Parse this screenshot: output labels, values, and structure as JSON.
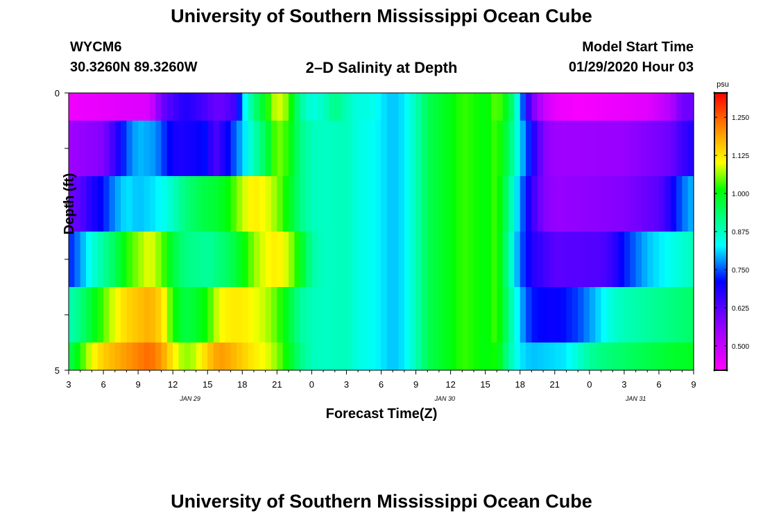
{
  "title_top": "University of Southern Mississippi Ocean Cube",
  "title_bottom": "University of Southern Mississippi Ocean Cube",
  "station": {
    "id": "WYCM6",
    "coords": "30.3260N 89.3260W"
  },
  "model": {
    "label": "Model Start Time",
    "start": "01/29/2020 Hour 03"
  },
  "chart_data": {
    "type": "heatmap",
    "title": "2–D Salinity at Depth",
    "xlabel": "Forecast Time(Z)",
    "ylabel": "Depth (ft)",
    "x_range_hours": [
      0,
      54
    ],
    "ylim": [
      0,
      5
    ],
    "y_ticks": [
      "0",
      "5"
    ],
    "x_tick_labels": [
      "3",
      "6",
      "9",
      "12",
      "15",
      "18",
      "21",
      "0",
      "3",
      "6",
      "9",
      "12",
      "15",
      "18",
      "21",
      "0",
      "3",
      "6",
      "9"
    ],
    "date_labels": [
      {
        "text": "JAN  29",
        "hour": 10.5
      },
      {
        "text": "JAN  30",
        "hour": 32.5
      },
      {
        "text": "JAN  31",
        "hour": 49
      }
    ],
    "colorbar": {
      "unit": "psu",
      "min": 0.42,
      "max": 1.33,
      "ticks": [
        "1.250",
        "1.125",
        "1.000",
        "0.875",
        "0.750",
        "0.625",
        "0.500"
      ],
      "tick_values": [
        1.25,
        1.125,
        1.0,
        0.875,
        0.75,
        0.625,
        0.5
      ]
    },
    "rows_depth_ft": [
      {
        "depth": "0.0-0.5",
        "segments": [
          [
            0,
            0.44
          ],
          [
            7,
            0.47
          ],
          [
            8,
            0.6
          ],
          [
            10,
            0.68
          ],
          [
            11,
            0.66
          ],
          [
            13,
            0.6
          ],
          [
            14.5,
            0.65
          ],
          [
            15,
            0.8
          ],
          [
            16,
            0.92
          ],
          [
            17,
            1.0
          ],
          [
            18,
            1.1
          ],
          [
            19,
            1.05
          ],
          [
            20,
            0.9
          ],
          [
            21,
            0.85
          ],
          [
            22,
            0.87
          ],
          [
            23,
            0.92
          ],
          [
            24,
            0.88
          ],
          [
            25,
            0.85
          ],
          [
            26,
            0.85
          ],
          [
            27,
            0.82
          ],
          [
            28,
            0.8
          ],
          [
            29,
            0.82
          ],
          [
            30,
            0.88
          ],
          [
            31,
            0.95
          ],
          [
            32,
            0.98
          ],
          [
            33,
            1.0
          ],
          [
            34,
            1.03
          ],
          [
            35,
            1.02
          ],
          [
            36,
            1.0
          ],
          [
            37,
            1.05
          ],
          [
            38,
            0.98
          ],
          [
            38.5,
            0.9
          ],
          [
            39,
            0.8
          ],
          [
            40,
            0.6
          ],
          [
            41,
            0.5
          ],
          [
            42,
            0.45
          ],
          [
            44,
            0.43
          ],
          [
            50,
            0.46
          ],
          [
            52,
            0.52
          ],
          [
            53,
            0.6
          ],
          [
            54,
            0.6
          ]
        ]
      },
      {
        "depth": "0.5-1.5",
        "segments": [
          [
            0,
            0.55
          ],
          [
            3,
            0.58
          ],
          [
            4,
            0.66
          ],
          [
            5,
            0.75
          ],
          [
            6,
            0.8
          ],
          [
            7.5,
            0.78
          ],
          [
            8.5,
            0.72
          ],
          [
            9.5,
            0.68
          ],
          [
            11,
            0.7
          ],
          [
            12,
            0.72
          ],
          [
            12.5,
            0.62
          ],
          [
            15,
            0.8
          ],
          [
            16,
            0.88
          ],
          [
            17,
            0.95
          ],
          [
            18,
            1.06
          ],
          [
            19,
            1.02
          ],
          [
            20,
            0.92
          ],
          [
            21,
            0.88
          ],
          [
            22,
            0.87
          ],
          [
            24,
            0.88
          ],
          [
            25,
            0.85
          ],
          [
            26,
            0.84
          ],
          [
            27,
            0.82
          ],
          [
            28,
            0.8
          ],
          [
            29,
            0.82
          ],
          [
            30,
            0.88
          ],
          [
            31,
            0.95
          ],
          [
            32,
            0.98
          ],
          [
            33,
            1.0
          ],
          [
            34,
            1.03
          ],
          [
            35,
            1.02
          ],
          [
            36,
            1.0
          ],
          [
            37,
            1.04
          ],
          [
            38,
            0.95
          ],
          [
            39,
            0.82
          ],
          [
            40,
            0.7
          ],
          [
            41,
            0.58
          ],
          [
            42,
            0.55
          ],
          [
            48,
            0.56
          ],
          [
            52,
            0.6
          ],
          [
            53,
            0.65
          ],
          [
            54,
            0.68
          ]
        ]
      },
      {
        "depth": "1.5-2.5",
        "segments": [
          [
            0,
            0.6
          ],
          [
            1,
            0.62
          ],
          [
            2,
            0.68
          ],
          [
            3,
            0.72
          ],
          [
            4,
            0.78
          ],
          [
            5,
            0.82
          ],
          [
            6,
            0.8
          ],
          [
            7.5,
            0.82
          ],
          [
            8.5,
            0.85
          ],
          [
            10,
            0.92
          ],
          [
            11.5,
            0.96
          ],
          [
            13,
            0.98
          ],
          [
            14,
            1.02
          ],
          [
            15,
            1.08
          ],
          [
            16,
            1.12
          ],
          [
            17,
            1.1
          ],
          [
            18,
            1.06
          ],
          [
            19,
            1.0
          ],
          [
            20,
            0.92
          ],
          [
            21,
            0.88
          ],
          [
            22,
            0.87
          ],
          [
            24,
            0.88
          ],
          [
            25,
            0.85
          ],
          [
            26,
            0.84
          ],
          [
            27,
            0.82
          ],
          [
            28,
            0.8
          ],
          [
            29,
            0.82
          ],
          [
            30,
            0.88
          ],
          [
            31,
            0.95
          ],
          [
            32,
            0.98
          ],
          [
            33,
            1.0
          ],
          [
            34,
            1.03
          ],
          [
            35,
            1.02
          ],
          [
            36,
            1.0
          ],
          [
            37,
            1.04
          ],
          [
            38,
            0.92
          ],
          [
            39,
            0.78
          ],
          [
            40,
            0.66
          ],
          [
            41,
            0.58
          ],
          [
            42,
            0.56
          ],
          [
            48,
            0.58
          ],
          [
            51,
            0.62
          ],
          [
            52,
            0.68
          ],
          [
            53,
            0.76
          ],
          [
            54,
            0.8
          ]
        ]
      },
      {
        "depth": "2.5-3.5",
        "segments": [
          [
            0,
            0.72
          ],
          [
            1,
            0.78
          ],
          [
            2,
            0.85
          ],
          [
            3,
            0.9
          ],
          [
            4,
            0.95
          ],
          [
            5,
            1.02
          ],
          [
            6,
            1.06
          ],
          [
            7,
            1.1
          ],
          [
            8,
            1.05
          ],
          [
            9,
            0.97
          ],
          [
            10,
            0.92
          ],
          [
            12,
            0.9
          ],
          [
            14,
            0.95
          ],
          [
            15,
            1.0
          ],
          [
            16,
            1.06
          ],
          [
            17,
            1.1
          ],
          [
            18,
            1.12
          ],
          [
            19,
            1.08
          ],
          [
            20,
            1.0
          ],
          [
            21,
            0.9
          ],
          [
            22,
            0.87
          ],
          [
            24,
            0.88
          ],
          [
            25,
            0.85
          ],
          [
            26,
            0.84
          ],
          [
            27,
            0.82
          ],
          [
            28,
            0.8
          ],
          [
            29,
            0.82
          ],
          [
            30,
            0.88
          ],
          [
            31,
            0.95
          ],
          [
            32,
            0.98
          ],
          [
            33,
            1.0
          ],
          [
            34,
            1.03
          ],
          [
            35,
            1.02
          ],
          [
            36,
            1.0
          ],
          [
            37,
            1.04
          ],
          [
            38,
            0.9
          ],
          [
            39,
            0.76
          ],
          [
            40,
            0.68
          ],
          [
            41,
            0.65
          ],
          [
            42,
            0.62
          ],
          [
            46,
            0.63
          ],
          [
            47,
            0.66
          ],
          [
            48,
            0.72
          ],
          [
            49,
            0.76
          ],
          [
            50,
            0.8
          ],
          [
            51,
            0.82
          ],
          [
            52,
            0.84
          ],
          [
            53,
            0.86
          ],
          [
            54,
            0.88
          ]
        ]
      },
      {
        "depth": "3.5-4.5",
        "segments": [
          [
            0,
            0.88
          ],
          [
            1,
            0.92
          ],
          [
            2,
            0.98
          ],
          [
            3,
            1.04
          ],
          [
            4,
            1.1
          ],
          [
            5,
            1.14
          ],
          [
            6,
            1.16
          ],
          [
            7,
            1.18
          ],
          [
            8,
            1.14
          ],
          [
            9,
            1.02
          ],
          [
            10,
            0.96
          ],
          [
            11,
            0.98
          ],
          [
            12,
            1.02
          ],
          [
            13,
            1.1
          ],
          [
            14,
            1.12
          ],
          [
            15,
            1.12
          ],
          [
            16,
            1.1
          ],
          [
            17,
            1.08
          ],
          [
            18,
            1.04
          ],
          [
            19,
            0.98
          ],
          [
            20,
            0.9
          ],
          [
            21,
            0.88
          ],
          [
            22,
            0.87
          ],
          [
            24,
            0.88
          ],
          [
            25,
            0.85
          ],
          [
            26,
            0.84
          ],
          [
            27,
            0.82
          ],
          [
            28,
            0.8
          ],
          [
            29,
            0.82
          ],
          [
            30,
            0.88
          ],
          [
            31,
            0.95
          ],
          [
            32,
            0.98
          ],
          [
            33,
            1.0
          ],
          [
            34,
            1.03
          ],
          [
            35,
            1.02
          ],
          [
            36,
            1.0
          ],
          [
            37,
            1.04
          ],
          [
            38,
            0.92
          ],
          [
            39,
            0.8
          ],
          [
            40,
            0.72
          ],
          [
            42,
            0.7
          ],
          [
            44,
            0.74
          ],
          [
            45,
            0.78
          ],
          [
            46,
            0.82
          ],
          [
            47,
            0.86
          ],
          [
            48,
            0.88
          ],
          [
            50,
            0.9
          ],
          [
            52,
            0.92
          ],
          [
            54,
            0.94
          ]
        ]
      },
      {
        "depth": "4.5-5.0",
        "segments": [
          [
            0,
            0.95
          ],
          [
            1,
            1.02
          ],
          [
            2,
            1.1
          ],
          [
            3,
            1.15
          ],
          [
            5,
            1.2
          ],
          [
            7,
            1.24
          ],
          [
            8,
            1.2
          ],
          [
            9,
            1.12
          ],
          [
            10,
            1.06
          ],
          [
            11,
            1.08
          ],
          [
            12,
            1.15
          ],
          [
            13,
            1.2
          ],
          [
            14,
            1.18
          ],
          [
            15,
            1.15
          ],
          [
            16,
            1.12
          ],
          [
            17,
            1.1
          ],
          [
            18,
            1.06
          ],
          [
            19,
            1.0
          ],
          [
            20,
            0.92
          ],
          [
            21,
            0.88
          ],
          [
            22,
            0.87
          ],
          [
            24,
            0.88
          ],
          [
            25,
            0.85
          ],
          [
            26,
            0.84
          ],
          [
            27,
            0.82
          ],
          [
            28,
            0.8
          ],
          [
            29,
            0.82
          ],
          [
            30,
            0.88
          ],
          [
            31,
            0.95
          ],
          [
            32,
            0.98
          ],
          [
            33,
            1.0
          ],
          [
            34,
            1.03
          ],
          [
            35,
            1.02
          ],
          [
            36,
            1.0
          ],
          [
            37,
            1.02
          ],
          [
            38,
            0.9
          ],
          [
            39,
            0.82
          ],
          [
            40,
            0.8
          ],
          [
            43,
            0.82
          ],
          [
            44,
            0.86
          ],
          [
            45,
            0.9
          ],
          [
            46,
            0.92
          ],
          [
            48,
            0.94
          ],
          [
            50,
            0.96
          ],
          [
            52,
            0.98
          ],
          [
            54,
            0.99
          ]
        ]
      }
    ]
  }
}
